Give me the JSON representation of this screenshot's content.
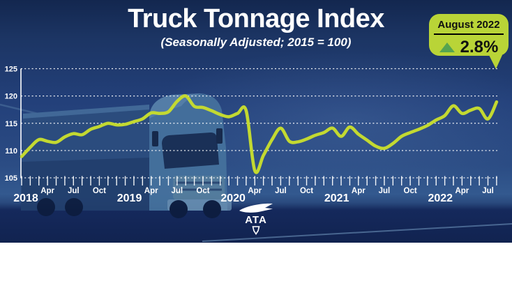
{
  "header": {
    "title": "Truck Tonnage Index",
    "subtitle": "(Seasonally Adjusted; 2015 = 100)"
  },
  "badge": {
    "month": "August 2022",
    "value": "2.8%",
    "direction": "up",
    "bg_color": "#b9d437",
    "arrow_color": "#55a44f",
    "text_color": "#101010"
  },
  "footer": {
    "logo_text": "ATA"
  },
  "colors": {
    "line": "#c3d931",
    "grid": "#ffffff",
    "axis_text": "#ffffff",
    "background_navy": "#23407a",
    "road_navy": "#15295c"
  },
  "chart_data": {
    "type": "line",
    "title": "Truck Tonnage Index",
    "subtitle": "(Seasonally Adjusted; 2015 = 100)",
    "xlabel": "",
    "ylabel": "",
    "ylim": [
      105,
      125
    ],
    "yticks": [
      125,
      120,
      115,
      110,
      105
    ],
    "grid": "horizontal-dashed",
    "x_unit": "month",
    "x_range": [
      "2018-01",
      "2022-08"
    ],
    "years": [
      "2018",
      "2019",
      "2020",
      "2021",
      "2022"
    ],
    "month_tick_labels": [
      {
        "label": "Apr",
        "month": 3
      },
      {
        "label": "Jul",
        "month": 6
      },
      {
        "label": "Oct",
        "month": 9
      }
    ],
    "legend": "none",
    "series": [
      {
        "name": "Truck Tonnage Index",
        "values": [
          108.9,
          110.6,
          112.0,
          111.7,
          111.5,
          112.5,
          113.1,
          112.9,
          113.9,
          114.4,
          115.0,
          114.7,
          114.8,
          115.3,
          115.8,
          116.9,
          116.8,
          117.1,
          119.0,
          120.0,
          118.1,
          117.9,
          117.3,
          116.6,
          116.2,
          116.8,
          117.3,
          106.3,
          109.1,
          112.0,
          114.1,
          111.7,
          111.6,
          112.1,
          112.8,
          113.3,
          114.1,
          112.6,
          114.3,
          113.0,
          111.9,
          110.8,
          110.4,
          111.3,
          112.6,
          113.3,
          113.9,
          114.6,
          115.6,
          116.4,
          118.2,
          116.8,
          117.4,
          117.7,
          115.8,
          118.9
        ]
      }
    ]
  }
}
